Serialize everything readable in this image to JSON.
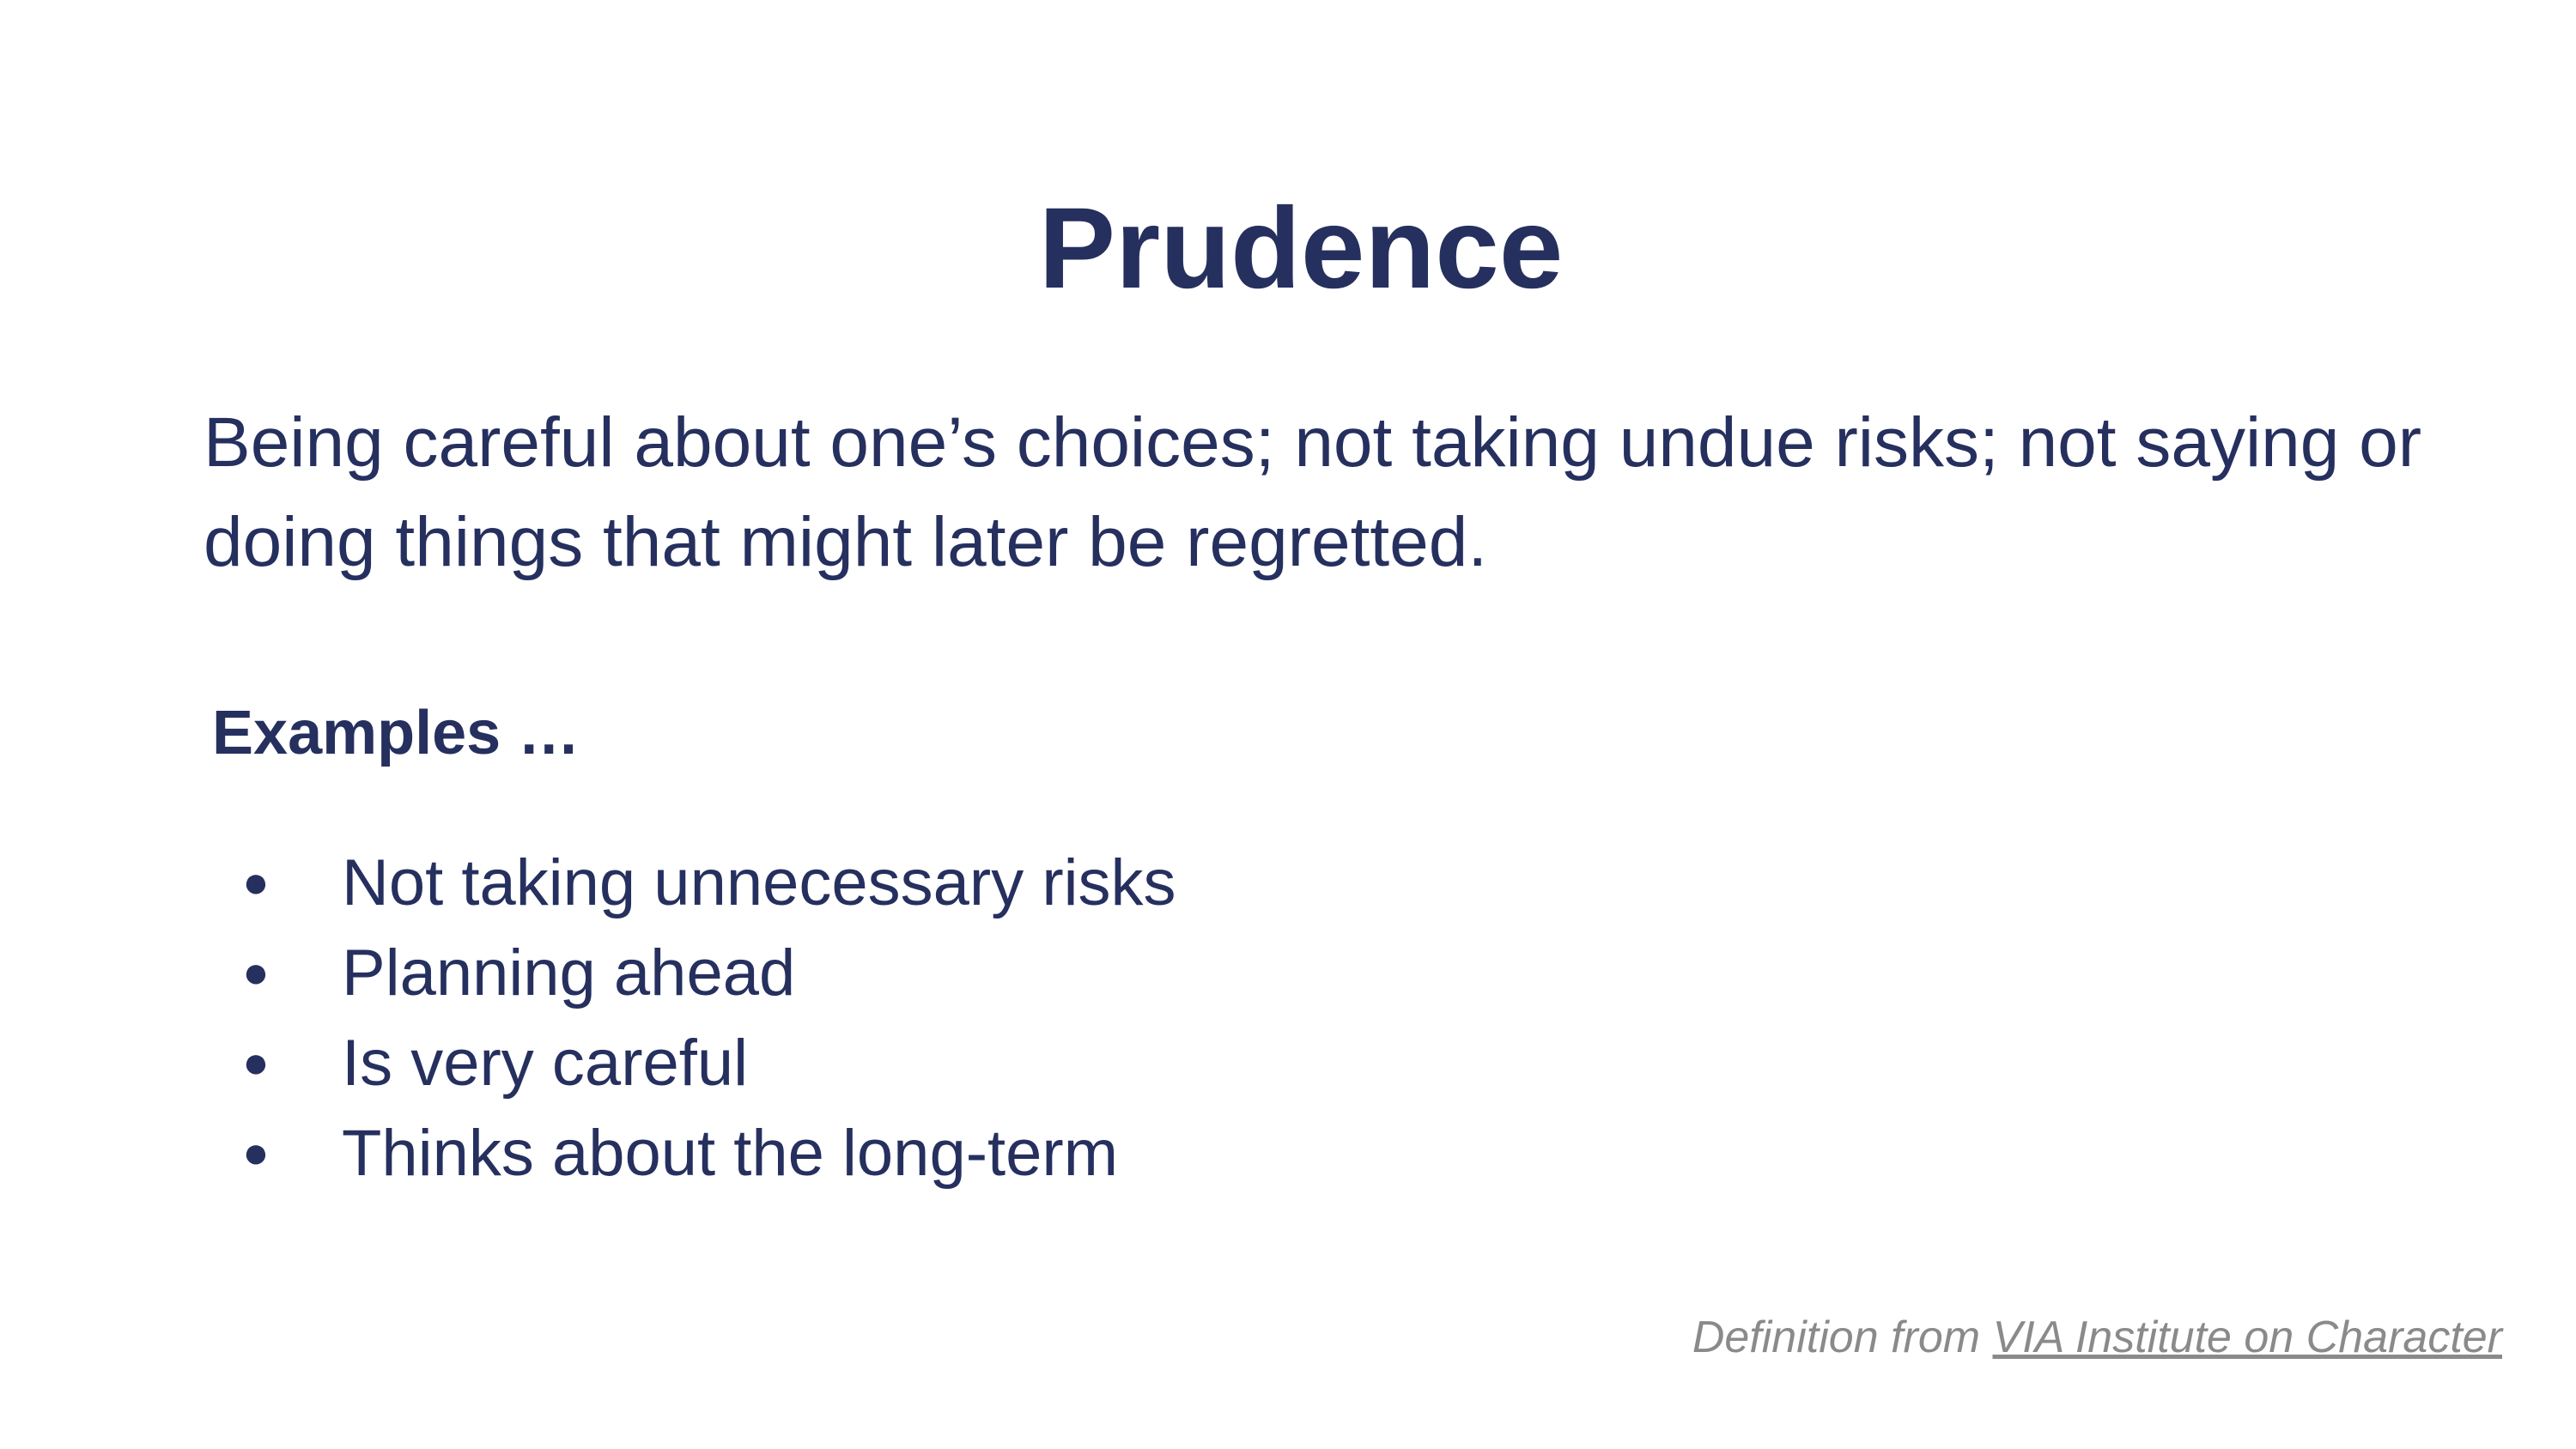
{
  "slide": {
    "title": "Prudence",
    "definition": "Being careful about one’s choices; not taking undue risks; not saying or doing things that might later be regretted.",
    "examples_heading": "Examples …",
    "bullet_glyph": "●",
    "examples": [
      "Not taking unnecessary risks",
      "Planning ahead",
      "Is very careful",
      "Thinks about the long-term"
    ],
    "footer": {
      "prefix": "Definition from ",
      "link_text": "VIA Institute on Character"
    }
  },
  "colors": {
    "text_primary": "#26305f",
    "footer_text": "#8a8a8a",
    "background": "#ffffff"
  }
}
